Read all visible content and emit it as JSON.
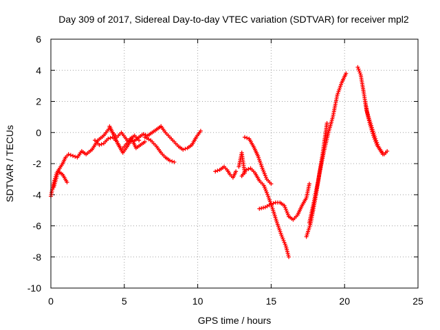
{
  "chart_data": {
    "type": "scatter",
    "title": "Day 309 of 2017, Sidereal Day-to-day VTEC variation (SDTVAR) for receiver mpl2",
    "xlabel": "GPS time / hours",
    "ylabel": "SDTVAR / TECUs",
    "xlim": [
      0,
      25
    ],
    "ylim": [
      -10,
      6
    ],
    "xticks": [
      0,
      5,
      10,
      15,
      20,
      25
    ],
    "xtick_labels": [
      "0",
      "5",
      "10",
      "15",
      "20",
      "25"
    ],
    "yticks": [
      -10,
      -8,
      -6,
      -4,
      -2,
      0,
      2,
      4,
      6
    ],
    "ytick_labels": [
      "-10",
      "-8",
      "-6",
      "-4",
      "-2",
      "0",
      "2",
      "4",
      "6"
    ],
    "grid": true,
    "marker": "+",
    "series": [
      {
        "name": "seg1",
        "x": [
          0.0,
          0.2,
          0.4,
          0.6,
          0.8,
          1.0,
          1.2,
          1.5,
          1.8,
          2.1,
          2.4,
          2.8,
          3.2,
          3.6,
          4.0,
          4.2,
          4.5,
          4.8,
          5.2,
          5.6,
          6.0,
          6.3,
          6.6,
          6.9,
          7.2,
          7.5
        ],
        "y": [
          -4.1,
          -3.2,
          -2.6,
          -2.3,
          -2.0,
          -1.6,
          -1.4,
          -1.5,
          -1.6,
          -1.2,
          -1.4,
          -1.1,
          -0.5,
          -0.2,
          0.3,
          0.0,
          -0.3,
          0.0,
          -0.5,
          -0.6,
          -0.3,
          -0.1,
          -0.2,
          0.0,
          0.2,
          0.4
        ]
      },
      {
        "name": "seg2",
        "x": [
          0.2,
          0.5,
          0.8,
          1.1
        ],
        "y": [
          -3.5,
          -2.5,
          -2.7,
          -3.2
        ]
      },
      {
        "name": "seg3",
        "x": [
          3.0,
          3.3,
          3.6,
          3.9,
          4.2,
          4.5,
          4.8,
          5.1,
          5.4,
          5.7,
          6.0
        ],
        "y": [
          -0.5,
          -0.8,
          -0.7,
          -0.4,
          -0.3,
          -0.6,
          -1.1,
          -0.8,
          -0.4,
          -0.2,
          -0.5
        ]
      },
      {
        "name": "seg4",
        "x": [
          4.0,
          4.3,
          4.6,
          4.9,
          5.2,
          5.5,
          5.8,
          6.1,
          6.4
        ],
        "y": [
          0.4,
          -0.2,
          -0.8,
          -1.3,
          -0.9,
          -0.4,
          -1.0,
          -0.8,
          -0.6
        ]
      },
      {
        "name": "seg5",
        "x": [
          6.4,
          6.8,
          7.2,
          7.5,
          7.8,
          8.1,
          8.4
        ],
        "y": [
          -0.3,
          -0.5,
          -0.9,
          -1.3,
          -1.6,
          -1.8,
          -1.9
        ]
      },
      {
        "name": "seg6",
        "x": [
          7.5,
          7.8,
          8.1,
          8.4,
          8.7,
          9.0,
          9.3,
          9.6,
          9.9,
          10.2
        ],
        "y": [
          0.4,
          0.0,
          -0.3,
          -0.6,
          -0.9,
          -1.1,
          -1.0,
          -0.8,
          -0.3,
          0.1
        ]
      },
      {
        "name": "seg7",
        "x": [
          11.2,
          11.5,
          11.8,
          12.0,
          12.2,
          12.4,
          12.6
        ],
        "y": [
          -2.5,
          -2.4,
          -2.2,
          -2.4,
          -2.7,
          -2.9,
          -2.5
        ]
      },
      {
        "name": "seg8",
        "x": [
          12.8,
          13.0,
          13.2
        ],
        "y": [
          -2.2,
          -1.3,
          -2.6
        ]
      },
      {
        "name": "seg9",
        "x": [
          13.2,
          13.5,
          13.8,
          14.1,
          14.4,
          14.7,
          15.0
        ],
        "y": [
          -0.3,
          -0.4,
          -0.9,
          -1.5,
          -2.3,
          -3.0,
          -3.3
        ]
      },
      {
        "name": "seg10",
        "x": [
          13.0,
          13.3,
          13.6,
          13.9,
          14.2,
          14.5,
          14.8,
          15.1,
          15.4,
          15.7,
          16.0,
          16.2
        ],
        "y": [
          -2.8,
          -2.4,
          -2.3,
          -2.6,
          -3.1,
          -3.4,
          -4.1,
          -4.9,
          -5.8,
          -6.6,
          -7.3,
          -8.0
        ]
      },
      {
        "name": "seg11",
        "x": [
          14.2,
          14.6,
          15.0,
          15.3,
          15.6,
          15.9,
          16.2,
          16.5,
          16.8,
          17.1,
          17.4,
          17.6
        ],
        "y": [
          -4.9,
          -4.8,
          -4.6,
          -4.5,
          -4.5,
          -4.7,
          -5.4,
          -5.6,
          -5.3,
          -4.7,
          -4.2,
          -3.3
        ]
      },
      {
        "name": "seg12",
        "x": [
          17.4,
          17.7,
          18.0,
          18.3,
          18.6,
          18.9,
          19.2,
          19.5,
          19.8,
          20.1
        ],
        "y": [
          -6.7,
          -5.8,
          -4.3,
          -2.6,
          -1.2,
          0.0,
          1.0,
          2.4,
          3.2,
          3.8
        ]
      },
      {
        "name": "seg13",
        "x": [
          17.6,
          17.9,
          18.2,
          18.5,
          18.8
        ],
        "y": [
          -5.8,
          -4.5,
          -3.1,
          -1.4,
          0.6
        ]
      },
      {
        "name": "seg14",
        "x": [
          20.9,
          21.1,
          21.3,
          21.5,
          21.7,
          21.9,
          22.1,
          22.3,
          22.5,
          22.7,
          22.9
        ],
        "y": [
          4.2,
          3.7,
          2.6,
          1.4,
          0.8,
          0.2,
          -0.4,
          -0.9,
          -1.2,
          -1.4,
          -1.2
        ]
      },
      {
        "name": "seg15",
        "x": [
          21.4,
          21.6,
          21.8,
          22.0,
          22.2,
          22.4,
          22.6,
          22.8
        ],
        "y": [
          2.0,
          1.0,
          0.3,
          -0.3,
          -0.8,
          -1.1,
          -1.4,
          -1.3
        ]
      }
    ],
    "colors": {
      "marker": "#ff0000",
      "grid": "#a0a0a0",
      "frame": "#000000"
    }
  }
}
